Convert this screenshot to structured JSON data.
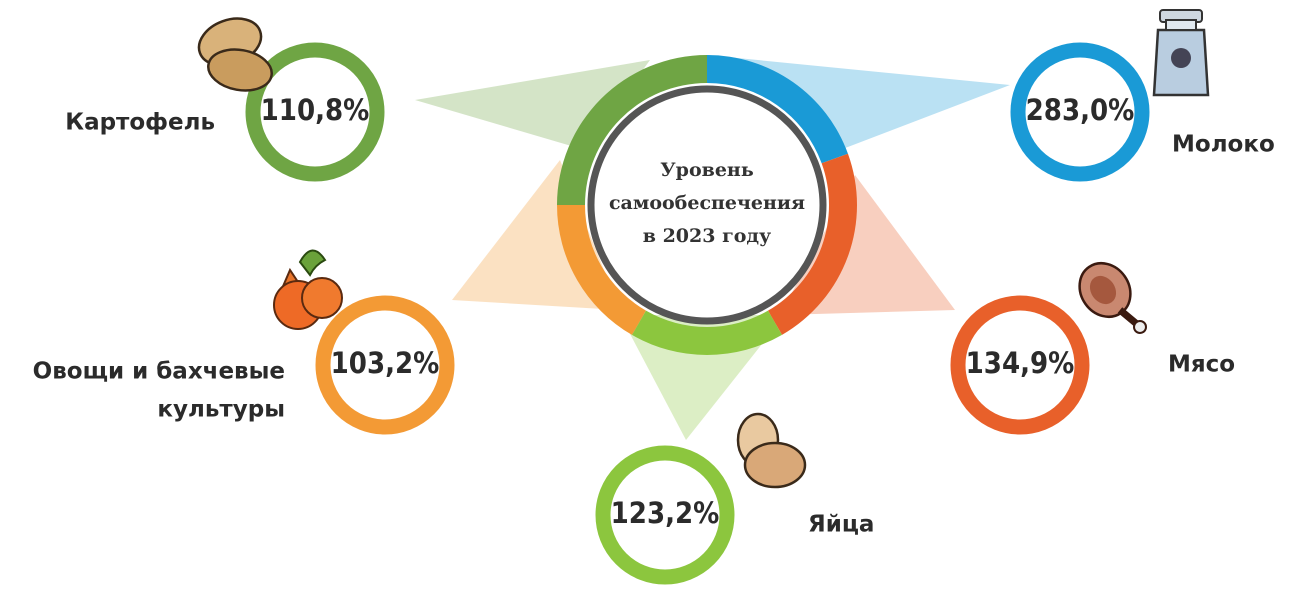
{
  "center": {
    "title": [
      "Уровень",
      "самообеспечения",
      "в 2023 году"
    ]
  },
  "items": [
    {
      "label": [
        "Картофель"
      ],
      "value": "110,8%"
    },
    {
      "label": [
        "Молоко"
      ],
      "value": "283,0%"
    },
    {
      "label": [
        "Овощи и бахчевые",
        "культуры"
      ],
      "value": "103,2%"
    },
    {
      "label": [
        "Мясо"
      ],
      "value": "134,9%"
    },
    {
      "label": [
        "Яйца"
      ],
      "value": "123,2%"
    }
  ]
}
